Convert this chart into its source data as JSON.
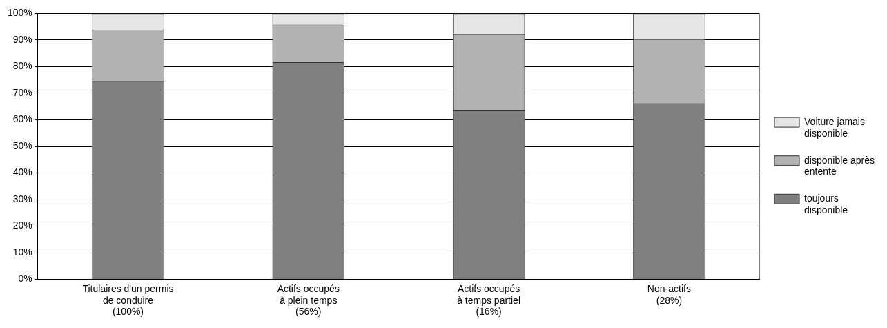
{
  "chart_data": {
    "type": "bar",
    "stacked": true,
    "categories": [
      "Titulaires d'un permis\nde conduire\n(100%)",
      "Actifs occupés\nà plein temps\n(56%)",
      "Actifs occupés\nà temps partiel\n(16%)",
      "Non-actifs\n(28%)"
    ],
    "series": [
      {
        "name": "toujours disponible",
        "color": "#808080",
        "values": [
          74.5,
          81.7,
          63.5,
          66.5
        ]
      },
      {
        "name": "disponible après entente",
        "color": "#b2b2b2",
        "values": [
          19.3,
          14.1,
          28.9,
          23.9
        ]
      },
      {
        "name": "Voiture jamais disponible",
        "color": "#e6e6e6",
        "values": [
          6.2,
          4.2,
          7.6,
          9.6
        ]
      }
    ],
    "ylim": [
      0,
      100
    ],
    "yticks": [
      {
        "value": 0,
        "label": "0%"
      },
      {
        "value": 10,
        "label": "10%"
      },
      {
        "value": 20,
        "label": "20%"
      },
      {
        "value": 30,
        "label": "30%"
      },
      {
        "value": 40,
        "label": "40%"
      },
      {
        "value": 50,
        "label": "50%"
      },
      {
        "value": 60,
        "label": "60%"
      },
      {
        "value": 70,
        "label": "70%"
      },
      {
        "value": 80,
        "label": "80%"
      },
      {
        "value": 90,
        "label": "90%"
      },
      {
        "value": 100,
        "label": "100%"
      }
    ],
    "grid": "y",
    "legend": "right"
  }
}
